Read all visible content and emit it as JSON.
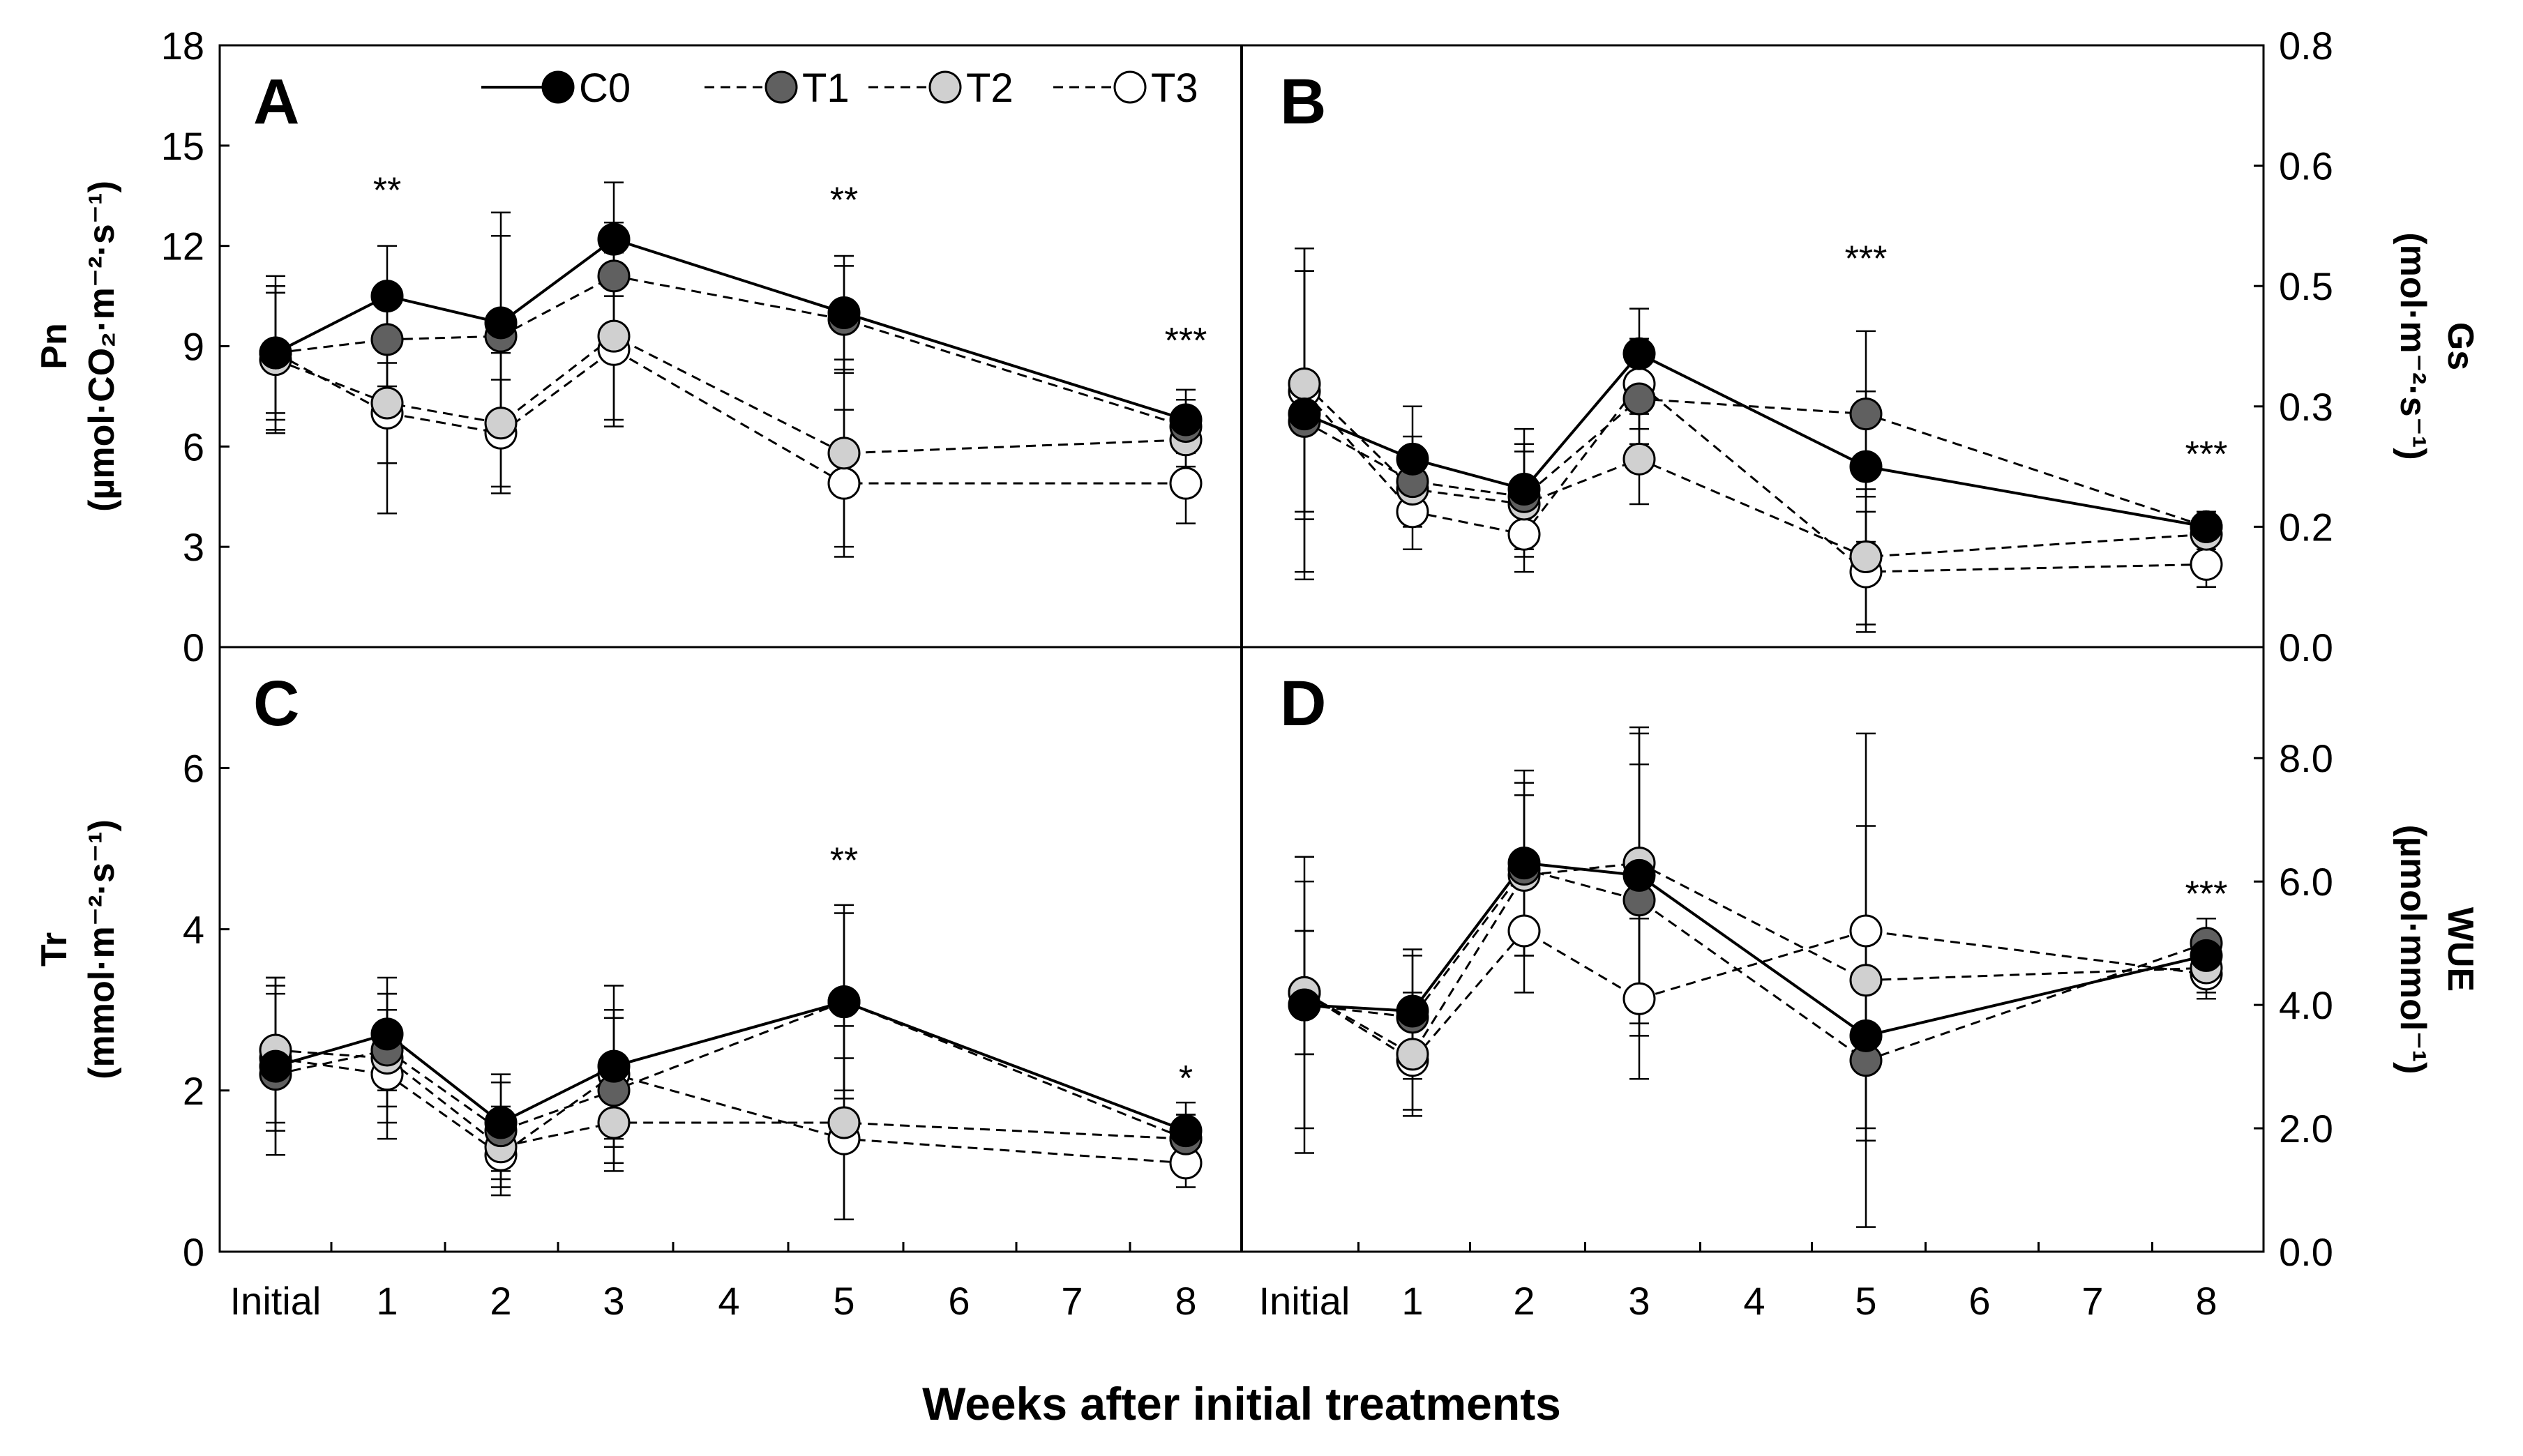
{
  "figure": {
    "x_title": "Weeks after initial treatments",
    "x_categories": [
      "Initial",
      "1",
      "2",
      "3",
      "4",
      "5",
      "6",
      "7",
      "8"
    ],
    "legend": [
      {
        "name": "C0",
        "fill": "#000000",
        "dash": "solid"
      },
      {
        "name": "T1",
        "fill": "#606060",
        "dash": "dashed"
      },
      {
        "name": "T2",
        "fill": "#d0d0d0",
        "dash": "dashed"
      },
      {
        "name": "T3",
        "fill": "#ffffff",
        "dash": "dashed"
      }
    ]
  },
  "chart_data": [
    {
      "id": "A",
      "type": "line",
      "label": "A",
      "ylabel_lines": [
        "Pn",
        "(µmol·CO₂·m⁻²·s⁻¹)"
      ],
      "ylim": [
        0,
        18
      ],
      "yticks": [
        "0",
        "3",
        "6",
        "9",
        "12",
        "15",
        "18"
      ],
      "axis_side": "left",
      "x": [
        0,
        1,
        2,
        3,
        5,
        8
      ],
      "series": [
        {
          "name": "C0",
          "values": [
            8.8,
            10.5,
            9.7,
            12.2,
            10.0,
            6.8
          ],
          "err": [
            2.0,
            1.5,
            3.3,
            1.7,
            1.7,
            0.9
          ]
        },
        {
          "name": "T1",
          "values": [
            8.8,
            9.2,
            9.3,
            11.1,
            9.8,
            6.6
          ],
          "err": [
            2.3,
            1.4,
            3.0,
            1.6,
            1.6,
            0.8
          ]
        },
        {
          "name": "T2",
          "values": [
            8.6,
            7.3,
            6.7,
            9.3,
            5.8,
            6.2
          ],
          "err": [
            2.2,
            3.3,
            2.1,
            2.5,
            2.8,
            0.8
          ]
        },
        {
          "name": "T3",
          "values": [
            8.8,
            7.0,
            6.4,
            8.9,
            4.9,
            4.9
          ],
          "err": [
            1.8,
            1.5,
            1.6,
            2.3,
            2.2,
            1.2
          ]
        }
      ],
      "significance": [
        {
          "x": 1,
          "text": "**",
          "y": 13.3
        },
        {
          "x": 5,
          "text": "**",
          "y": 13.0
        },
        {
          "x": 8,
          "text": "***",
          "y": 8.8
        }
      ]
    },
    {
      "id": "B",
      "type": "line",
      "label": "B",
      "ylabel_lines": [
        "Gs",
        "(mol·m⁻²·s⁻¹)"
      ],
      "ylim": [
        0,
        0.8
      ],
      "yticks": [
        "0.0",
        "0.2",
        "0.3",
        "0.5",
        "0.6",
        "0.8"
      ],
      "axis_side": "right",
      "x": [
        0,
        1,
        2,
        3,
        5,
        8
      ],
      "series": [
        {
          "name": "C0",
          "values": [
            0.31,
            0.25,
            0.21,
            0.39,
            0.24,
            0.16
          ],
          "err": [
            0.22,
            0.07,
            0.08,
            0.06,
            0.1,
            0.02
          ]
        },
        {
          "name": "T1",
          "values": [
            0.3,
            0.22,
            0.2,
            0.33,
            0.31,
            0.16
          ],
          "err": [
            0.2,
            0.06,
            0.07,
            0.06,
            0.11,
            0.02
          ]
        },
        {
          "name": "T2",
          "values": [
            0.35,
            0.21,
            0.19,
            0.25,
            0.12,
            0.15
          ],
          "err": [
            0.18,
            0.05,
            0.07,
            0.06,
            0.09,
            0.02
          ]
        },
        {
          "name": "T3",
          "values": [
            0.34,
            0.18,
            0.15,
            0.35,
            0.1,
            0.11
          ],
          "err": [
            0.16,
            0.05,
            0.05,
            0.06,
            0.08,
            0.03
          ]
        }
      ],
      "significance": [
        {
          "x": 5,
          "text": "***",
          "y": 0.5
        },
        {
          "x": 8,
          "text": "***",
          "y": 0.24
        }
      ]
    },
    {
      "id": "C",
      "type": "line",
      "label": "C",
      "ylabel_lines": [
        "Tr",
        "(mmol·m⁻²·s⁻¹)"
      ],
      "ylim": [
        0,
        7.5
      ],
      "yticks": [
        "0",
        "2",
        "4",
        "6"
      ],
      "ytick_values": [
        0,
        2,
        4,
        6
      ],
      "axis_side": "left",
      "x": [
        0,
        1,
        2,
        3,
        5,
        8
      ],
      "series": [
        {
          "name": "C0",
          "values": [
            2.3,
            2.7,
            1.6,
            2.3,
            3.1,
            1.5
          ],
          "err": [
            1.1,
            0.7,
            0.6,
            1.0,
            1.2,
            0.35
          ]
        },
        {
          "name": "T1",
          "values": [
            2.2,
            2.5,
            1.5,
            2.0,
            3.1,
            1.4
          ],
          "err": [
            1.0,
            0.7,
            0.6,
            0.9,
            1.1,
            0.3
          ]
        },
        {
          "name": "T2",
          "values": [
            2.5,
            2.4,
            1.3,
            1.6,
            1.6,
            1.4
          ],
          "err": [
            0.9,
            0.8,
            0.5,
            0.6,
            1.2,
            0.3
          ]
        },
        {
          "name": "T3",
          "values": [
            2.4,
            2.2,
            1.2,
            2.2,
            1.4,
            1.1
          ],
          "err": [
            0.9,
            0.8,
            0.5,
            0.8,
            1.0,
            0.3
          ]
        }
      ],
      "significance": [
        {
          "x": 5,
          "text": "**",
          "y": 4.7
        },
        {
          "x": 8,
          "text": "*",
          "y": 2.0
        }
      ]
    },
    {
      "id": "D",
      "type": "line",
      "label": "D",
      "ylabel_lines": [
        "WUE",
        "(µmol·mmol⁻¹)"
      ],
      "ylim": [
        0,
        9.8
      ],
      "yticks": [
        "0.0",
        "2.0",
        "4.0",
        "6.0",
        "8.0"
      ],
      "ytick_values": [
        0,
        2,
        4,
        6,
        8
      ],
      "axis_side": "right",
      "x": [
        0,
        1,
        2,
        3,
        5,
        8
      ],
      "series": [
        {
          "name": "C0",
          "values": [
            4.0,
            3.9,
            6.3,
            6.1,
            3.5,
            4.8
          ],
          "err": [
            2.4,
            1.0,
            1.5,
            2.4,
            1.5,
            0.4
          ]
        },
        {
          "name": "T1",
          "values": [
            4.0,
            3.8,
            6.2,
            5.7,
            3.1,
            5.0
          ],
          "err": [
            2.0,
            1.0,
            1.4,
            2.2,
            1.3,
            0.4
          ]
        },
        {
          "name": "T2",
          "values": [
            4.2,
            3.2,
            6.1,
            6.3,
            4.4,
            4.6
          ],
          "err": [
            1.0,
            1.0,
            1.3,
            2.1,
            4.0,
            0.4
          ]
        },
        {
          "name": "T3",
          "values": [
            4.2,
            3.1,
            5.2,
            4.1,
            5.2,
            4.5
          ],
          "err": [
            1.0,
            0.8,
            1.0,
            1.3,
            1.7,
            0.4
          ]
        }
      ],
      "significance": [
        {
          "x": 8,
          "text": "***",
          "y": 5.6
        }
      ]
    }
  ]
}
